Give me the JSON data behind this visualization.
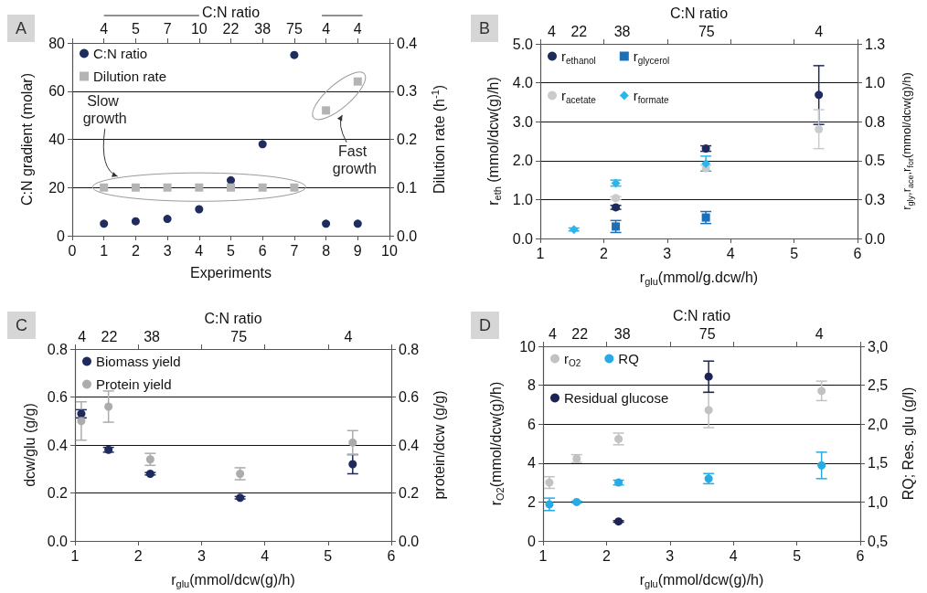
{
  "chart_data": [
    {
      "type": "scatter",
      "title": "A",
      "xlabel": "Experiments",
      "ylabel": "C:N gradient (molar)",
      "y2label": "Dilution rate (h$^{-1}$)",
      "x2label": "C:N ratio",
      "x": [
        1,
        2,
        3,
        4,
        5,
        6,
        7,
        8,
        9
      ],
      "series": [
        {
          "name": "C:N ratio",
          "color": "#1f2d5e",
          "marker": "circle",
          "values": [
            5,
            6,
            7,
            11,
            23,
            38,
            75,
            5,
            5
          ]
        },
        {
          "name": "Dilution rate",
          "color": "#b4b4b4",
          "marker": "square",
          "axis": "y2",
          "values": [
            0.1,
            0.1,
            0.1,
            0.1,
            0.1,
            0.1,
            0.1,
            0.26,
            0.32
          ]
        }
      ],
      "xlim": [
        0,
        10
      ],
      "xticks": [
        0,
        1,
        2,
        3,
        4,
        5,
        6,
        7,
        8,
        9,
        10
      ],
      "ylim": [
        0,
        80
      ],
      "yticks": [
        0,
        20,
        40,
        60,
        80
      ],
      "y2lim": [
        0,
        0.4
      ],
      "y2ticks": [
        {
          "value": 0,
          "label": "0.0"
        },
        0.1,
        0.2,
        0.3,
        0.4
      ],
      "grid": "y",
      "legend": "top left",
      "annotations": [
        "Slow growth",
        "Fast growth",
        {
          "text": "4",
          "x": 1
        },
        {
          "text": "5",
          "x": 2
        },
        {
          "text": "7",
          "x": 3
        },
        {
          "text": "10",
          "x": 4
        },
        {
          "text": "22",
          "x": 5
        },
        {
          "text": "38",
          "x": 6
        },
        {
          "text": "75",
          "x": 7
        },
        {
          "text": "4",
          "x": 8
        },
        {
          "text": "4",
          "x": 9
        }
      ]
    },
    {
      "type": "scatter",
      "title": "B",
      "xlabel": "r$_{glu}$(mmol/g.dcw/h)",
      "ylabel": "r$_{eth}$ (mmol/dcw(g)/h)",
      "y2label": "r$_{gly}$,r$_{ace}$,r$_{for}$(mmol/dcw(g)/h)",
      "x2label": "C:N ratio",
      "series": [
        {
          "name": "r$_{ethanol}$",
          "color": "#1f2a5e",
          "marker": "circle",
          "x": [
            2.19,
            3.61,
            5.39
          ],
          "values": [
            0.8,
            2.31,
            3.69
          ],
          "errors": [
            0.05,
            0.07,
            [
              2.93,
              4.44
            ]
          ]
        },
        {
          "name": "r$_{glycerol}$",
          "color": "#1b6fb8",
          "marker": "square",
          "axis": "y2",
          "x": [
            2.19,
            3.61
          ],
          "values": [
            0.08,
            0.14
          ],
          "errors": [
            [
              0.04,
              0.12
            ],
            [
              0.1,
              0.18
            ]
          ]
        },
        {
          "name": "r$_{acetate}$",
          "color": "#cbcbcb",
          "marker": "circle",
          "axis": "y2",
          "x": [
            2.19,
            3.61,
            5.39
          ],
          "values": [
            0.27,
            0.47,
            0.73
          ],
          "errors": [
            0.01,
            0.02,
            0.13
          ]
        },
        {
          "name": "r$_{formate}$",
          "color": "#2bb6ea",
          "marker": "diamond",
          "axis": "y2",
          "x": [
            1.53,
            2.19,
            3.61
          ],
          "values": [
            0.06,
            0.37,
            0.5
          ],
          "errors": [
            0.01,
            0.02,
            0.05
          ]
        }
      ],
      "xlim": [
        1,
        6
      ],
      "xticks": [
        1,
        2,
        3,
        4,
        5,
        6
      ],
      "ylim": [
        0,
        5
      ],
      "yticks": [
        {
          "value": 0,
          "label": "0.0"
        },
        {
          "value": 1,
          "label": "1.0"
        },
        {
          "value": 2,
          "label": "2.0"
        },
        {
          "value": 3,
          "label": "3.0"
        },
        {
          "value": 4,
          "label": "4.0"
        },
        {
          "value": 5,
          "label": "5.0"
        }
      ],
      "y2lim": [
        0,
        1.3
      ],
      "y2ticks": [
        {
          "value": 0,
          "label": "0.0"
        },
        {
          "value": 0.26,
          "label": "0.3"
        },
        {
          "value": 0.52,
          "label": "0.5"
        },
        {
          "value": 0.78,
          "label": "0.8"
        },
        {
          "value": 1.04,
          "label": "1.0"
        },
        1.3
      ],
      "grid": "y",
      "legend": "top left",
      "annotations": [
        "4",
        "22",
        "38",
        "75",
        "4"
      ]
    },
    {
      "type": "scatter",
      "title": "C",
      "xlabel": "r$_{glu}$(mmol/dcw(g)/h)",
      "ylabel": "dcw/glu (g/g)",
      "y2label": "protein/dcw (g/g)",
      "x2label": "C:N ratio",
      "x": [
        1.1,
        1.53,
        2.19,
        3.61,
        5.39
      ],
      "series": [
        {
          "name": "Biomass yield",
          "color": "#1f2a5e",
          "marker": "circle",
          "values": [
            0.53,
            0.38,
            0.28,
            0.18,
            0.32
          ],
          "errors": [
            0.017,
            0.01,
            0.005,
            0.005,
            0.04
          ]
        },
        {
          "name": "Protein yield",
          "color": "#acacac",
          "marker": "circle",
          "axis": "y2",
          "values": [
            0.5,
            0.56,
            0.34,
            0.28,
            0.41
          ],
          "errors": [
            0.08,
            0.065,
            0.025,
            0.025,
            0.05
          ]
        }
      ],
      "xlim": [
        1,
        6
      ],
      "xticks": [
        1,
        2,
        3,
        4,
        5,
        6
      ],
      "ylim": [
        0,
        0.8
      ],
      "yticks": [
        {
          "value": 0,
          "label": "0.0"
        },
        0.2,
        0.4,
        0.6,
        0.8
      ],
      "y2lim": [
        0,
        0.8
      ],
      "y2ticks": [
        {
          "value": 0,
          "label": "0.0"
        },
        0.2,
        0.4,
        0.6,
        0.8
      ],
      "grid": "y",
      "legend": "top left",
      "annotations": [
        "4",
        "22",
        "38",
        "75",
        "4"
      ]
    },
    {
      "type": "scatter",
      "title": "D",
      "xlabel": "r$_{glu}$(mmol/dcw(g)/h)",
      "ylabel": "r$_{O2}$(mmol/dcw(g)/h)",
      "y2label": "RQ; Res. glu (g/l)",
      "x2label": "C:N ratio",
      "series": [
        {
          "name": "r$_{O2}$",
          "color": "#c2c2c2",
          "marker": "circle",
          "x": [
            1.1,
            1.53,
            2.19,
            3.61,
            5.39
          ],
          "values": [
            3.0,
            4.23,
            5.24,
            6.72,
            7.71
          ],
          "errors": [
            0.3,
            0.2,
            0.3,
            0.9,
            0.5
          ]
        },
        {
          "name": "RQ",
          "color": "#2aaae2",
          "marker": "circle",
          "axis": "y2",
          "x": [
            1.1,
            1.53,
            2.19,
            3.61,
            5.39
          ],
          "values": [
            0.97,
            1.0,
            1.25,
            1.3,
            1.47
          ],
          "errors": [
            0.08,
            0.01,
            0.03,
            0.065,
            0.17
          ]
        },
        {
          "name": "Residual glucose",
          "color": "#1c2455",
          "marker": "circle",
          "axis": "y2",
          "x": [
            2.19,
            3.61
          ],
          "values": [
            0.75,
            2.61
          ],
          "errors": [
            0.01,
            0.2
          ]
        }
      ],
      "xlim": [
        1,
        6
      ],
      "xticks": [
        1,
        2,
        3,
        4,
        5,
        6
      ],
      "ylim": [
        0,
        10
      ],
      "yticks": [
        0,
        2,
        4,
        6,
        8,
        10
      ],
      "y2lim": [
        0.5,
        3.0
      ],
      "y2ticks": [
        {
          "value": 0.5,
          "label": "0,5"
        },
        {
          "value": 1,
          "label": "1,0"
        },
        {
          "value": 1.5,
          "label": "1,5"
        },
        {
          "value": 2,
          "label": "2,0"
        },
        {
          "value": 2.5,
          "label": "2,5"
        },
        {
          "value": 3,
          "label": "3,0"
        }
      ],
      "grid": "y",
      "legend": "top left",
      "annotations": [
        "4",
        "22",
        "38",
        "75",
        "4"
      ]
    }
  ]
}
